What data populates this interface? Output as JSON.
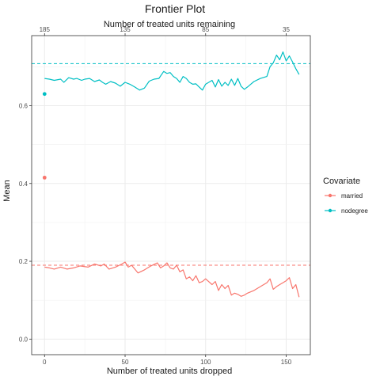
{
  "chart_data": {
    "type": "line",
    "title": "Frontier Plot",
    "xlabel": "Number of treated units dropped",
    "x2label": "Number of treated units remaining",
    "ylabel": "Mean",
    "xlim": [
      -8,
      165
    ],
    "ylim": [
      -0.04,
      0.78
    ],
    "x_ticks": [
      0,
      50,
      100,
      150
    ],
    "x_tick_labels": [
      "0",
      "50",
      "100",
      "150"
    ],
    "x2_ticks": [
      0,
      50,
      100,
      150
    ],
    "x2_tick_labels": [
      "185",
      "135",
      "85",
      "35"
    ],
    "y_ticks": [
      0.0,
      0.2,
      0.4,
      0.6
    ],
    "y_tick_labels": [
      "0.0",
      "0.2",
      "0.4",
      "0.6"
    ],
    "grid": true,
    "legend": {
      "title": "Covariate",
      "position": "right"
    },
    "series": [
      {
        "name": "married",
        "color": "#F8766D",
        "reference": 0.19,
        "start_point": {
          "x": 0,
          "y": 0.415
        },
        "x": [
          0,
          3,
          6,
          10,
          14,
          18,
          22,
          27,
          31,
          35,
          37,
          40,
          44,
          48,
          50,
          52,
          54,
          58,
          62,
          66,
          70,
          72,
          74,
          76,
          78,
          80,
          82,
          84,
          86,
          88,
          90,
          92,
          94,
          96,
          98,
          100,
          104,
          106,
          108,
          110,
          112,
          114,
          116,
          118,
          120,
          122,
          124,
          126,
          130,
          134,
          138,
          140,
          142,
          144,
          146,
          148,
          150,
          152,
          154,
          156,
          158
        ],
        "y": [
          0.185,
          0.183,
          0.18,
          0.185,
          0.18,
          0.183,
          0.188,
          0.185,
          0.193,
          0.188,
          0.193,
          0.18,
          0.185,
          0.193,
          0.198,
          0.185,
          0.19,
          0.17,
          0.178,
          0.188,
          0.196,
          0.183,
          0.188,
          0.196,
          0.183,
          0.18,
          0.19,
          0.173,
          0.178,
          0.155,
          0.16,
          0.15,
          0.163,
          0.145,
          0.148,
          0.155,
          0.14,
          0.148,
          0.125,
          0.14,
          0.13,
          0.138,
          0.113,
          0.118,
          0.115,
          0.11,
          0.113,
          0.118,
          0.125,
          0.135,
          0.145,
          0.155,
          0.128,
          0.135,
          0.14,
          0.145,
          0.15,
          0.158,
          0.13,
          0.14,
          0.108
        ]
      },
      {
        "name": "nodegree",
        "color": "#00BFC4",
        "reference": 0.708,
        "start_point": {
          "x": 0,
          "y": 0.63
        },
        "x": [
          0,
          3,
          6,
          10,
          12,
          15,
          18,
          20,
          23,
          25,
          28,
          31,
          34,
          36,
          38,
          41,
          44,
          47,
          50,
          53,
          56,
          59,
          62,
          65,
          68,
          71,
          74,
          76,
          78,
          80,
          82,
          84,
          86,
          88,
          90,
          92,
          94,
          96,
          98,
          100,
          104,
          106,
          108,
          110,
          112,
          114,
          116,
          118,
          120,
          122,
          124,
          126,
          128,
          130,
          134,
          138,
          140,
          142,
          144,
          146,
          148,
          150,
          152,
          154,
          156,
          158
        ],
        "y": [
          0.67,
          0.668,
          0.665,
          0.668,
          0.66,
          0.672,
          0.668,
          0.67,
          0.665,
          0.668,
          0.67,
          0.662,
          0.666,
          0.66,
          0.655,
          0.662,
          0.658,
          0.65,
          0.66,
          0.655,
          0.648,
          0.64,
          0.645,
          0.663,
          0.668,
          0.67,
          0.688,
          0.683,
          0.685,
          0.675,
          0.67,
          0.66,
          0.675,
          0.67,
          0.66,
          0.655,
          0.656,
          0.648,
          0.64,
          0.655,
          0.665,
          0.648,
          0.667,
          0.65,
          0.66,
          0.652,
          0.668,
          0.652,
          0.67,
          0.65,
          0.642,
          0.648,
          0.655,
          0.662,
          0.67,
          0.675,
          0.7,
          0.71,
          0.73,
          0.718,
          0.738,
          0.715,
          0.728,
          0.712,
          0.695,
          0.68
        ]
      }
    ]
  }
}
